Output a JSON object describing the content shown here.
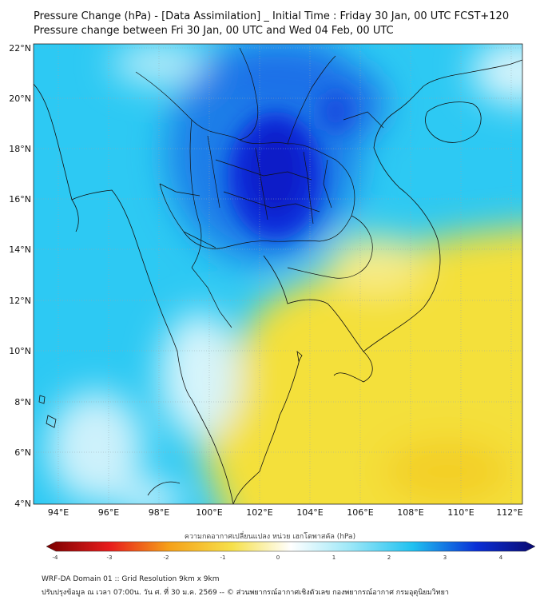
{
  "title": {
    "line1": "Pressure Change (hPa) - [Data Assimilation] _ Initial Time : Friday 30 Jan, 00 UTC FCST+120",
    "line2": "Pressure change between Fri 30 Jan, 00 UTC and Wed 04 Feb, 00 UTC"
  },
  "axes": {
    "lon_labels": [
      "94°E",
      "96°E",
      "98°E",
      "100°E",
      "102°E",
      "104°E",
      "106°E",
      "108°E",
      "110°E",
      "112°E"
    ],
    "lat_labels": [
      "22°N",
      "20°N",
      "18°N",
      "16°N",
      "14°N",
      "12°N",
      "10°N",
      "8°N",
      "6°N",
      "4°N"
    ],
    "lon_range": [
      93,
      112.5
    ],
    "lat_range": [
      4,
      22.2
    ]
  },
  "colorbar": {
    "title": "ความกดอากาศเปลี่ยนแปลง หน่วย เฮกโตพาสคัล (hPa)",
    "tick_labels": [
      "-4",
      "-3",
      "-2",
      "-1",
      "0",
      "1",
      "2",
      "3",
      "4"
    ],
    "range": [
      -4,
      4
    ],
    "colors": {
      "strong_negative": "#7a0000",
      "negative": "#e81c1c",
      "weak_negative": "#f5a019",
      "near_zero_neg": "#f6e04a",
      "zero": "#ffffff",
      "near_zero_pos": "#9ee8f8",
      "positive": "#1fc1f0",
      "strong_positive": "#0a2fd6",
      "max_positive": "#0a0a70"
    }
  },
  "footer": {
    "line1": "WRF-DA Domain 01 :: Grid Resolution 9km x 9km",
    "line2": "ปรับปรุงข้อมูล ณ เวลา 07:00น. วัน ศ. ที่ 30 ม.ค. 2569 -- © ส่วนพยากรณ์อากาศเชิงตัวเลข กองพยากรณ์อากาศ กรมอุตุนิยมวิทยา"
  }
}
